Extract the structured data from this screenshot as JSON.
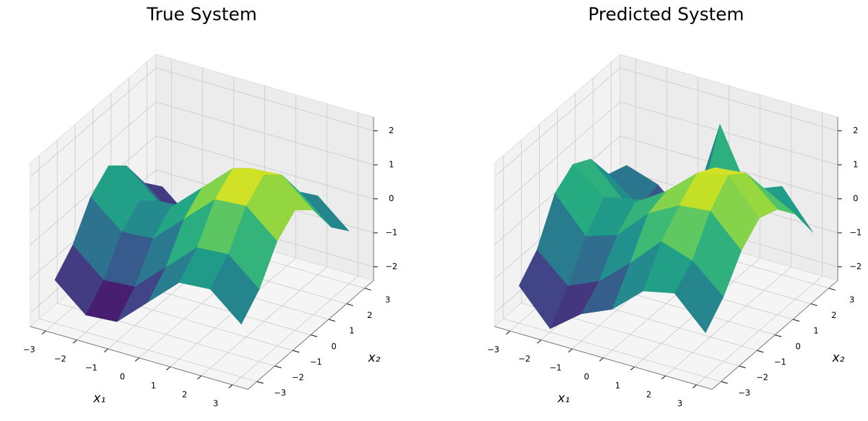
{
  "chart_data": [
    {
      "type": "surface",
      "title": "True System",
      "xlabel": "x₁",
      "ylabel": "x₂",
      "colormap": "viridis",
      "x": [
        -3,
        -2,
        -1,
        0,
        1,
        2,
        3
      ],
      "y": [
        -3,
        -2,
        -1,
        0,
        1,
        2,
        3
      ],
      "z": [
        [
          -1.13,
          -1.9,
          -1.83,
          -0.99,
          -0.15,
          -0.08,
          -0.85
        ],
        [
          -0.56,
          -1.33,
          -1.26,
          -0.42,
          0.42,
          0.49,
          -0.28
        ],
        [
          0.4,
          -0.37,
          -0.3,
          0.54,
          1.38,
          1.45,
          0.68
        ],
        [
          0.86,
          0.09,
          0.16,
          1,
          1.84,
          1.91,
          1.14
        ],
        [
          0.4,
          -0.37,
          -0.3,
          0.54,
          1.38,
          1.45,
          0.68
        ],
        [
          -0.56,
          -1.33,
          -1.26,
          -0.42,
          0.42,
          0.49,
          -0.28
        ],
        [
          -1.13,
          -1.9,
          -1.83,
          -0.99,
          -0.15,
          -0.08,
          -0.85
        ]
      ],
      "xlim": [
        -3.5,
        3.5
      ],
      "ylim": [
        -3.5,
        3.5
      ],
      "zlim": [
        -2.4,
        2.4
      ],
      "xticks": [
        {
          "value": -3,
          "label": "−3"
        },
        {
          "value": -2,
          "label": "−2"
        },
        {
          "value": -1,
          "label": "−1"
        },
        0,
        1,
        2,
        3
      ],
      "yticks": [
        {
          "value": -3,
          "label": "−3"
        },
        {
          "value": -2,
          "label": "−2"
        },
        {
          "value": -1,
          "label": "−1"
        },
        0,
        1,
        2,
        3
      ],
      "zticks": [
        {
          "value": -2,
          "label": "−2"
        },
        {
          "value": -1,
          "label": "−1"
        },
        0,
        1,
        2
      ],
      "grid": true
    },
    {
      "type": "surface",
      "title": "Predicted System",
      "xlabel": "x₁",
      "ylabel": "x₂",
      "colormap": "viridis",
      "x": [
        -3,
        -2,
        -1,
        0,
        1,
        2,
        3
      ],
      "y": [
        -3,
        -2,
        -1,
        0,
        1,
        2,
        3
      ],
      "z": [
        [
          -1.3,
          -2.3,
          -1.6,
          -1.2,
          -0.4,
          -0.2,
          -1.1
        ],
        [
          -0.7,
          -1.5,
          -1.1,
          -0.3,
          0.6,
          0.3,
          -0.5
        ],
        [
          0.5,
          -0.5,
          -0.2,
          0.7,
          1.2,
          1.3,
          0.4
        ],
        [
          0.9,
          0.2,
          0.3,
          0.9,
          1.7,
          1.9,
          0.9
        ],
        [
          0.6,
          -0.3,
          -0.1,
          0.6,
          1.4,
          1.5,
          0.7
        ],
        [
          -0.3,
          -1.0,
          -1.4,
          -0.2,
          0.5,
          0.6,
          0.1
        ],
        [
          -0.5,
          -0.8,
          -1.6,
          1.5,
          -0.4,
          0.2,
          -0.9
        ]
      ],
      "xlim": [
        -3.5,
        3.5
      ],
      "ylim": [
        -3.5,
        3.5
      ],
      "zlim": [
        -2.4,
        2.4
      ],
      "xticks": [
        {
          "value": -3,
          "label": "−3"
        },
        {
          "value": -2,
          "label": "−2"
        },
        {
          "value": -1,
          "label": "−1"
        },
        0,
        1,
        2,
        3
      ],
      "yticks": [
        {
          "value": -3,
          "label": "−3"
        },
        {
          "value": -2,
          "label": "−2"
        },
        {
          "value": -1,
          "label": "−1"
        },
        0,
        1,
        2,
        3
      ],
      "zticks": [
        {
          "value": -2,
          "label": "−2"
        },
        {
          "value": -1,
          "label": "−1"
        },
        0,
        1,
        2
      ],
      "grid": true
    }
  ]
}
